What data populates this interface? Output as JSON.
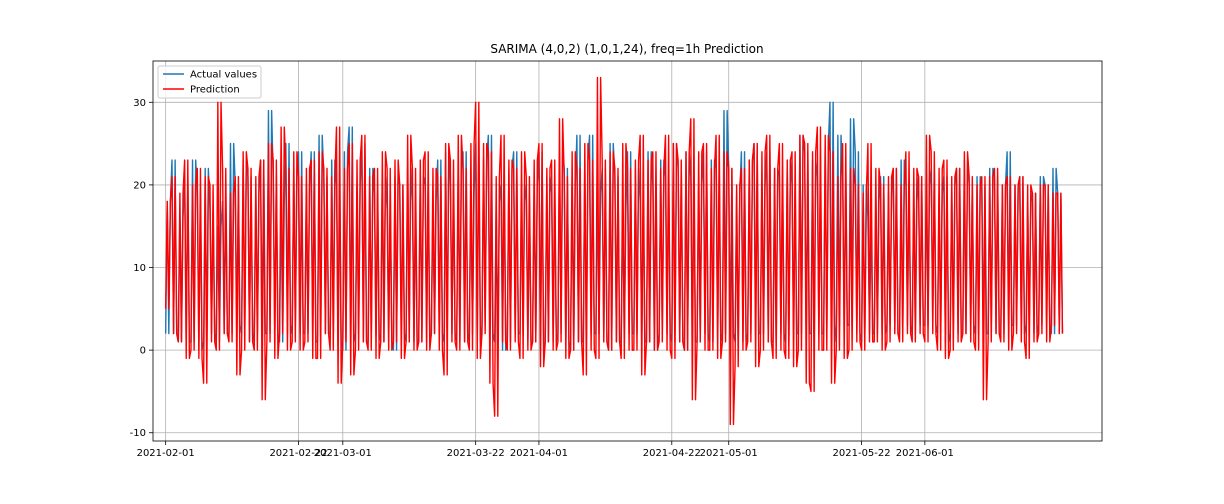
{
  "chart_data": {
    "type": "line",
    "title": "SARIMA (4,0,2) (1,0,1,24), freq=1h Prediction",
    "xlabel": "",
    "ylabel": "",
    "x_range": [
      "2021-01-30",
      "2021-06-29"
    ],
    "ylim": [
      -11,
      35
    ],
    "y_ticks": [
      -10,
      0,
      10,
      20,
      30
    ],
    "x_ticks": [
      "2021-02-01",
      "2021-02-22",
      "2021-03-01",
      "2021-03-22",
      "2021-04-01",
      "2021-04-22",
      "2021-05-01",
      "2021-05-22",
      "2021-06-01"
    ],
    "x_tick_labels": [
      "2021-02-01",
      "2021-02-22",
      "2021-03-01",
      "2021-03-22",
      "2021-04-01",
      "2021-04-22",
      "2021-05-01",
      "2021-05-22",
      "2021-06-01"
    ],
    "grid": true,
    "legend_position": "top-left",
    "series": [
      {
        "name": "Actual values",
        "color": "#1f77b4",
        "x": [
          "2021-02-01",
          "2021-02-02",
          "2021-02-03",
          "2021-02-04",
          "2021-02-05",
          "2021-02-06",
          "2021-02-07",
          "2021-02-08",
          "2021-02-09",
          "2021-02-10",
          "2021-02-11",
          "2021-02-12",
          "2021-02-13",
          "2021-02-14",
          "2021-02-15",
          "2021-02-16",
          "2021-02-17",
          "2021-02-18",
          "2021-02-19",
          "2021-02-20",
          "2021-02-21",
          "2021-02-22",
          "2021-02-23",
          "2021-02-24",
          "2021-02-25",
          "2021-02-26",
          "2021-02-27",
          "2021-02-28",
          "2021-03-01",
          "2021-03-02",
          "2021-03-03",
          "2021-03-04",
          "2021-03-05",
          "2021-03-06",
          "2021-03-07",
          "2021-03-08",
          "2021-03-09",
          "2021-03-10",
          "2021-03-11",
          "2021-03-12",
          "2021-03-13",
          "2021-03-14",
          "2021-03-15",
          "2021-03-16",
          "2021-03-17",
          "2021-03-18",
          "2021-03-19",
          "2021-03-20",
          "2021-03-21",
          "2021-03-22",
          "2021-03-23",
          "2021-03-24",
          "2021-03-25",
          "2021-03-26",
          "2021-03-27",
          "2021-03-28",
          "2021-03-29",
          "2021-03-30",
          "2021-03-31",
          "2021-04-01",
          "2021-04-02",
          "2021-04-03",
          "2021-04-04",
          "2021-04-05",
          "2021-04-06",
          "2021-04-07",
          "2021-04-08",
          "2021-04-09",
          "2021-04-10",
          "2021-04-11",
          "2021-04-12",
          "2021-04-13",
          "2021-04-14",
          "2021-04-15",
          "2021-04-16",
          "2021-04-17",
          "2021-04-18",
          "2021-04-19",
          "2021-04-20",
          "2021-04-21",
          "2021-04-22",
          "2021-04-23",
          "2021-04-24",
          "2021-04-25",
          "2021-04-26",
          "2021-04-27",
          "2021-04-28",
          "2021-04-29",
          "2021-04-30",
          "2021-05-01",
          "2021-05-02",
          "2021-05-03",
          "2021-05-04",
          "2021-05-05",
          "2021-05-06",
          "2021-05-07",
          "2021-05-08",
          "2021-05-09",
          "2021-05-10",
          "2021-05-11",
          "2021-05-12",
          "2021-05-13",
          "2021-05-14",
          "2021-05-15",
          "2021-05-16",
          "2021-05-17",
          "2021-05-18",
          "2021-05-19",
          "2021-05-20",
          "2021-05-21",
          "2021-05-22",
          "2021-05-23",
          "2021-05-24",
          "2021-05-25",
          "2021-05-26",
          "2021-05-27",
          "2021-05-28",
          "2021-05-29",
          "2021-05-30",
          "2021-05-31",
          "2021-06-01",
          "2021-06-02",
          "2021-06-03",
          "2021-06-04",
          "2021-06-05",
          "2021-06-06",
          "2021-06-07",
          "2021-06-08",
          "2021-06-09",
          "2021-06-10",
          "2021-06-11",
          "2021-06-12",
          "2021-06-13",
          "2021-06-14",
          "2021-06-15",
          "2021-06-16",
          "2021-06-17",
          "2021-06-18",
          "2021-06-19",
          "2021-06-20",
          "2021-06-21",
          "2021-06-22"
        ],
        "min": [
          2,
          2,
          1,
          1,
          1,
          0,
          1,
          2,
          1,
          2,
          2,
          3,
          2,
          1,
          2,
          2,
          2,
          2,
          1,
          2,
          3,
          2,
          2,
          1,
          1,
          2,
          2,
          1,
          0,
          1,
          2,
          1,
          1,
          2,
          1,
          1,
          0,
          2,
          1,
          1,
          1,
          1,
          2,
          2,
          1,
          2,
          1,
          1,
          2,
          1,
          3,
          2,
          1,
          0,
          1,
          2,
          2,
          1,
          1,
          0,
          1,
          1,
          2,
          1,
          0,
          1,
          1,
          2,
          2,
          1,
          0,
          1,
          1,
          2,
          2,
          1,
          1,
          0,
          2,
          2,
          1,
          1,
          0,
          1,
          1,
          2,
          1,
          1,
          2,
          2,
          1,
          1,
          2,
          2,
          2,
          1,
          1,
          2,
          1,
          2,
          2,
          2,
          2,
          2,
          2,
          1,
          3,
          3,
          3,
          2,
          1,
          2,
          2,
          2,
          3,
          2,
          2,
          3,
          2,
          3,
          3,
          3,
          2,
          1,
          2,
          2,
          2,
          3,
          2,
          2,
          2,
          2,
          2,
          3,
          3,
          2,
          3,
          2,
          3,
          3,
          2,
          2
        ],
        "max": [
          18,
          23,
          16,
          21,
          23,
          19,
          22,
          17,
          15,
          18,
          25,
          20,
          23,
          21,
          19,
          23,
          29,
          21,
          18,
          25,
          21,
          24,
          20,
          24,
          26,
          21,
          23,
          20,
          24,
          27,
          20,
          25,
          22,
          19,
          21,
          17,
          21,
          20,
          22,
          18,
          21,
          20,
          18,
          23,
          24,
          20,
          22,
          24,
          19,
          25,
          23,
          26,
          18,
          20,
          22,
          24,
          20,
          18,
          20,
          24,
          21,
          19,
          24,
          22,
          20,
          26,
          23,
          26,
          19,
          22,
          25,
          21,
          17,
          24,
          22,
          18,
          24,
          20,
          23,
          21,
          25,
          22,
          24,
          21,
          20,
          24,
          23,
          22,
          29,
          22,
          19,
          24,
          23,
          25,
          20,
          24,
          22,
          21,
          23,
          20,
          26,
          24,
          23,
          21,
          25,
          30,
          26,
          21,
          28,
          24,
          20,
          16,
          18,
          21,
          19,
          22,
          23,
          20,
          18,
          21,
          20,
          22,
          19,
          21,
          20,
          22,
          23,
          20,
          21,
          20,
          22,
          21,
          20,
          24,
          20,
          21,
          18,
          19,
          21,
          20,
          22,
          19
        ]
      },
      {
        "name": "Prediction",
        "color": "#ff0000",
        "x": [
          "2021-02-01",
          "2021-02-02",
          "2021-02-03",
          "2021-02-04",
          "2021-02-05",
          "2021-02-06",
          "2021-02-07",
          "2021-02-08",
          "2021-02-09",
          "2021-02-10",
          "2021-02-11",
          "2021-02-12",
          "2021-02-13",
          "2021-02-14",
          "2021-02-15",
          "2021-02-16",
          "2021-02-17",
          "2021-02-18",
          "2021-02-19",
          "2021-02-20",
          "2021-02-21",
          "2021-02-22",
          "2021-02-23",
          "2021-02-24",
          "2021-02-25",
          "2021-02-26",
          "2021-02-27",
          "2021-02-28",
          "2021-03-01",
          "2021-03-02",
          "2021-03-03",
          "2021-03-04",
          "2021-03-05",
          "2021-03-06",
          "2021-03-07",
          "2021-03-08",
          "2021-03-09",
          "2021-03-10",
          "2021-03-11",
          "2021-03-12",
          "2021-03-13",
          "2021-03-14",
          "2021-03-15",
          "2021-03-16",
          "2021-03-17",
          "2021-03-18",
          "2021-03-19",
          "2021-03-20",
          "2021-03-21",
          "2021-03-22",
          "2021-03-23",
          "2021-03-24",
          "2021-03-25",
          "2021-03-26",
          "2021-03-27",
          "2021-03-28",
          "2021-03-29",
          "2021-03-30",
          "2021-03-31",
          "2021-04-01",
          "2021-04-02",
          "2021-04-03",
          "2021-04-04",
          "2021-04-05",
          "2021-04-06",
          "2021-04-07",
          "2021-04-08",
          "2021-04-09",
          "2021-04-10",
          "2021-04-11",
          "2021-04-12",
          "2021-04-13",
          "2021-04-14",
          "2021-04-15",
          "2021-04-16",
          "2021-04-17",
          "2021-04-18",
          "2021-04-19",
          "2021-04-20",
          "2021-04-21",
          "2021-04-22",
          "2021-04-23",
          "2021-04-24",
          "2021-04-25",
          "2021-04-26",
          "2021-04-27",
          "2021-04-28",
          "2021-04-29",
          "2021-04-30",
          "2021-05-01",
          "2021-05-02",
          "2021-05-03",
          "2021-05-04",
          "2021-05-05",
          "2021-05-06",
          "2021-05-07",
          "2021-05-08",
          "2021-05-09",
          "2021-05-10",
          "2021-05-11",
          "2021-05-12",
          "2021-05-13",
          "2021-05-14",
          "2021-05-15",
          "2021-05-16",
          "2021-05-17",
          "2021-05-18",
          "2021-05-19",
          "2021-05-20",
          "2021-05-21",
          "2021-05-22",
          "2021-05-23",
          "2021-05-24",
          "2021-05-25",
          "2021-05-26",
          "2021-05-27",
          "2021-05-28",
          "2021-05-29",
          "2021-05-30",
          "2021-05-31",
          "2021-06-01",
          "2021-06-02",
          "2021-06-03",
          "2021-06-04",
          "2021-06-05",
          "2021-06-06",
          "2021-06-07",
          "2021-06-08",
          "2021-06-09",
          "2021-06-10",
          "2021-06-11",
          "2021-06-12",
          "2021-06-13",
          "2021-06-14",
          "2021-06-15",
          "2021-06-16",
          "2021-06-17",
          "2021-06-18",
          "2021-06-19",
          "2021-06-20",
          "2021-06-21",
          "2021-06-22"
        ],
        "min": [
          5,
          2,
          1,
          -1,
          0,
          -1,
          -4,
          1,
          0,
          2,
          1,
          -3,
          0,
          1,
          0,
          -6,
          1,
          -1,
          2,
          0,
          1,
          0,
          1,
          -1,
          -1,
          2,
          0,
          -4,
          1,
          -3,
          0,
          1,
          0,
          -1,
          1,
          0,
          1,
          -1,
          1,
          0,
          1,
          0,
          2,
          0,
          -3,
          1,
          0,
          1,
          0,
          -1,
          2,
          -4,
          -8,
          1,
          0,
          1,
          -1,
          0,
          1,
          -2,
          1,
          0,
          1,
          -1,
          0,
          1,
          -3,
          0,
          -1,
          1,
          0,
          1,
          -1,
          0,
          0,
          -3,
          1,
          0,
          1,
          0,
          -1,
          1,
          0,
          -6,
          1,
          0,
          0,
          -1,
          1,
          -9,
          -2,
          0,
          1,
          -2,
          0,
          1,
          -1,
          0,
          -1,
          -2,
          0,
          -4,
          -5,
          0,
          0,
          -4,
          0,
          -1,
          0,
          1,
          0,
          1,
          1,
          0,
          1,
          2,
          1,
          2,
          1,
          2,
          1,
          2,
          0,
          -1,
          0,
          1,
          2,
          1,
          0,
          -6,
          1,
          2,
          1,
          0,
          2,
          1,
          -1,
          1,
          2,
          1,
          3,
          2
        ],
        "max": [
          18,
          21,
          19,
          23,
          20,
          22,
          21,
          20,
          30,
          22,
          19,
          21,
          24,
          22,
          21,
          23,
          25,
          23,
          27,
          22,
          24,
          21,
          22,
          23,
          24,
          22,
          21,
          27,
          22,
          25,
          23,
          26,
          21,
          22,
          24,
          22,
          23,
          20,
          26,
          22,
          23,
          24,
          22,
          21,
          25,
          23,
          26,
          22,
          25,
          30,
          25,
          24,
          21,
          26,
          23,
          22,
          24,
          21,
          23,
          25,
          22,
          23,
          28,
          21,
          24,
          22,
          25,
          23,
          33,
          23,
          24,
          22,
          25,
          22,
          23,
          26,
          23,
          24,
          22,
          26,
          25,
          23,
          24,
          28,
          24,
          25,
          22,
          26,
          24,
          22,
          20,
          22,
          23,
          25,
          24,
          26,
          22,
          25,
          23,
          24,
          26,
          25,
          24,
          27,
          26,
          24,
          21,
          25,
          22,
          20,
          19,
          25,
          22,
          20,
          21,
          22,
          20,
          24,
          22,
          21,
          26,
          24,
          22,
          23,
          21,
          22,
          24,
          21,
          20,
          21,
          21,
          22,
          20,
          21,
          20,
          21,
          20,
          19,
          20,
          20,
          19,
          19
        ]
      }
    ]
  }
}
